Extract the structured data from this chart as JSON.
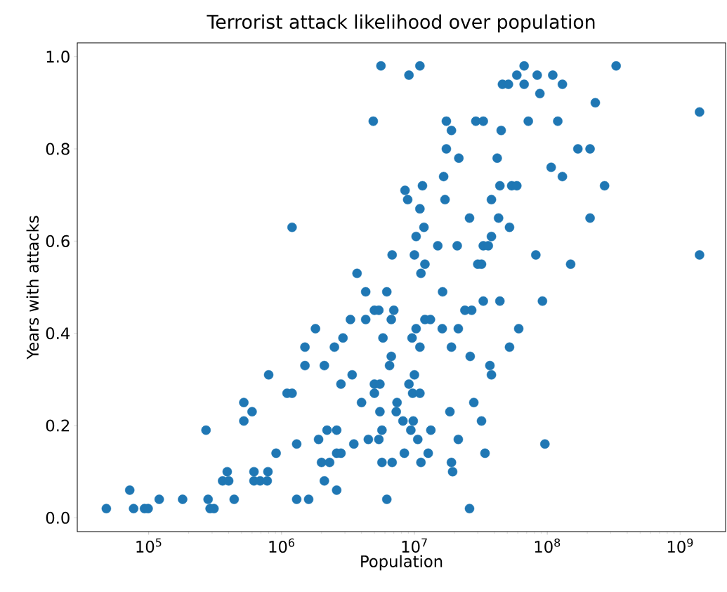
{
  "chart_data": {
    "type": "scatter",
    "title": "Terrorist attack likelihood over population",
    "xlabel": "Population",
    "ylabel": "Years with attacks",
    "log": "x",
    "color": "#1f77b4",
    "xlim": [
      29000.0,
      2200000000.0
    ],
    "ylim": [
      -0.03,
      1.03
    ],
    "xticks": [
      {
        "value": 100000.0,
        "label": "10$^{5}$"
      },
      {
        "value": 1000000.0,
        "label": "10$^{6}$"
      },
      {
        "value": 10000000.0,
        "label": "10$^{7}$"
      },
      {
        "value": 100000000.0,
        "label": "10$^{8}$"
      },
      {
        "value": 1000000000.0,
        "label": "10$^{9}$"
      }
    ],
    "yticks": [
      {
        "value": 0,
        "label": "0.0"
      },
      {
        "value": 0.2,
        "label": "0.2"
      },
      {
        "value": 0.4,
        "label": "0.4"
      },
      {
        "value": 0.6,
        "label": "0.6"
      },
      {
        "value": 0.8,
        "label": "0.8"
      },
      {
        "value": 1,
        "label": "1.0"
      }
    ],
    "x": [
      48000.0,
      72000.0,
      77000.0,
      93000.0,
      99000.0,
      120000.0,
      180000.0,
      270000.0,
      280000.0,
      290000.0,
      310000.0,
      360000.0,
      390000.0,
      400000.0,
      440000.0,
      520000.0,
      520000.0,
      600000.0,
      620000.0,
      620000.0,
      690000.0,
      780000.0,
      790000.0,
      800000.0,
      910000.0,
      1100000.0,
      1200000.0,
      1200000.0,
      1300000.0,
      1300000.0,
      1500000.0,
      1500000.0,
      1600000.0,
      1800000.0,
      1900000.0,
      2000000.0,
      2100000.0,
      2100000.0,
      2200000.0,
      2300000.0,
      2500000.0,
      2600000.0,
      2600000.0,
      2600000.0,
      2800000.0,
      2800000.0,
      2900000.0,
      3300000.0,
      3400000.0,
      3500000.0,
      3700000.0,
      4000000.0,
      4300000.0,
      4300000.0,
      4500000.0,
      4900000.0,
      5000000.0,
      5000000.0,
      5000000.0,
      5400000.0,
      5400000.0,
      5500000.0,
      5500000.0,
      5600000.0,
      5700000.0,
      5700000.0,
      5800000.0,
      6200000.0,
      6200000.0,
      6500000.0,
      6700000.0,
      6700000.0,
      6800000.0,
      6800000.0,
      7000000.0,
      7300000.0,
      7400000.0,
      8200000.0,
      8400000.0,
      8500000.0,
      8900000.0,
      9100000.0,
      9100000.0,
      9400000.0,
      9600000.0,
      9700000.0,
      9800000.0,
      10000000.0,
      10000000.0,
      10300000.0,
      10300000.0,
      10600000.0,
      11000000.0,
      11000000.0,
      11000000.0,
      11000000.0,
      11200000.0,
      11200000.0,
      11500000.0,
      11800000.0,
      12000000.0,
      12000000.0,
      12700000.0,
      13200000.0,
      13300000.0,
      16200000.0,
      15000000.0,
      16300000.0,
      16600000.0,
      17000000.0,
      17400000.0,
      17400000.0,
      18500000.0,
      19000000.0,
      19000000.0,
      19000000.0,
      19400000.0,
      21000000.0,
      21400000.0,
      21400000.0,
      21600000.0,
      24000000.0,
      26000000.0,
      26000000.0,
      26300000.0,
      27000000.0,
      28000000.0,
      29000000.0,
      30000000.0,
      32000000.0,
      32000000.0,
      33000000.0,
      33000000.0,
      33000000.0,
      34000000.0,
      36000000.0,
      37000000.0,
      38000000.0,
      38000000.0,
      38000000.0,
      42000000.0,
      43000000.0,
      44000000.0,
      44000000.0,
      45000000.0,
      46000000.0,
      51000000.0,
      52000000.0,
      52000000.0,
      54000000.0,
      59000000.0,
      59000000.0,
      61000000.0,
      67000000.0,
      67000000.0,
      72000000.0,
      82000000.0,
      84000000.0,
      88000000.0,
      92000000.0,
      96000000.0,
      107000000.0,
      110000000.0,
      120000000.0,
      130000000.0,
      130000000.0,
      150000000.0,
      170000000.0,
      210000000.0,
      210000000.0,
      230000000.0,
      270000000.0,
      330000000.0,
      1400000000.0,
      1400000000.0
    ],
    "values": [
      0.02,
      0.06,
      0.02,
      0.02,
      0.02,
      0.04,
      0.04,
      0.19,
      0.04,
      0.02,
      0.02,
      0.08,
      0.1,
      0.08,
      0.04,
      0.25,
      0.21,
      0.23,
      0.1,
      0.08,
      0.08,
      0.08,
      0.1,
      0.31,
      0.14,
      0.27,
      0.27,
      0.63,
      0.04,
      0.16,
      0.37,
      0.33,
      0.04,
      0.41,
      0.17,
      0.12,
      0.33,
      0.08,
      0.19,
      0.12,
      0.37,
      0.06,
      0.14,
      0.19,
      0.14,
      0.29,
      0.39,
      0.43,
      0.31,
      0.16,
      0.53,
      0.25,
      0.49,
      0.43,
      0.17,
      0.86,
      0.45,
      0.29,
      0.27,
      0.45,
      0.17,
      0.29,
      0.23,
      0.98,
      0.19,
      0.12,
      0.39,
      0.49,
      0.04,
      0.33,
      0.43,
      0.35,
      0.12,
      0.57,
      0.45,
      0.23,
      0.25,
      0.21,
      0.14,
      0.71,
      0.69,
      0.96,
      0.29,
      0.19,
      0.39,
      0.27,
      0.21,
      0.57,
      0.31,
      0.61,
      0.41,
      0.17,
      0.98,
      0.27,
      0.67,
      0.37,
      0.53,
      0.12,
      0.72,
      0.63,
      0.55,
      0.43,
      0.14,
      0.43,
      0.19,
      0.41,
      0.59,
      0.49,
      0.74,
      0.69,
      0.86,
      0.8,
      0.23,
      0.84,
      0.37,
      0.12,
      0.1,
      0.59,
      0.41,
      0.17,
      0.78,
      0.45,
      0.65,
      0.02,
      0.35,
      0.45,
      0.25,
      0.86,
      0.55,
      0.55,
      0.21,
      0.59,
      0.86,
      0.47,
      0.14,
      0.59,
      0.33,
      0.31,
      0.61,
      0.69,
      0.78,
      0.65,
      0.47,
      0.72,
      0.84,
      0.94,
      0.94,
      0.63,
      0.37,
      0.72,
      0.72,
      0.96,
      0.41,
      0.98,
      0.94,
      0.86,
      0.57,
      0.96,
      0.92,
      0.47,
      0.16,
      0.76,
      0.96,
      0.86,
      0.94,
      0.74,
      0.55,
      0.8,
      0.65,
      0.8,
      0.9,
      0.72,
      0.98,
      0.88,
      0.57
    ]
  }
}
